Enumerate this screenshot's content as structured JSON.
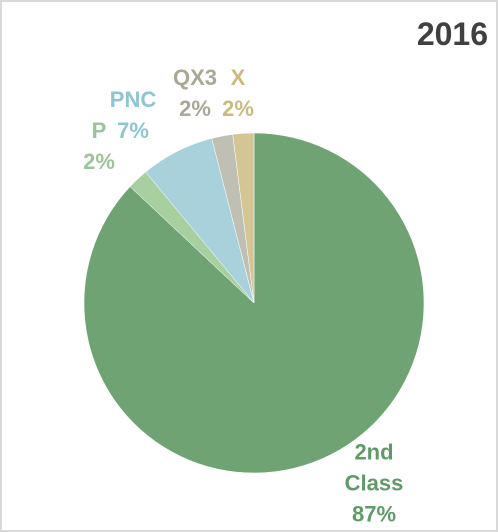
{
  "chart_data": {
    "type": "pie",
    "title": "2016",
    "categories": [
      "2nd Class",
      "P",
      "PNC",
      "QX3",
      "X"
    ],
    "values": [
      87,
      2,
      7,
      2,
      2
    ],
    "value_labels": [
      "87%",
      "2%",
      "7%",
      "2%",
      "2%"
    ],
    "colors": [
      "#6fa374",
      "#a8cfa0",
      "#a9d1dc",
      "#c0bfb3",
      "#d4c594"
    ]
  }
}
